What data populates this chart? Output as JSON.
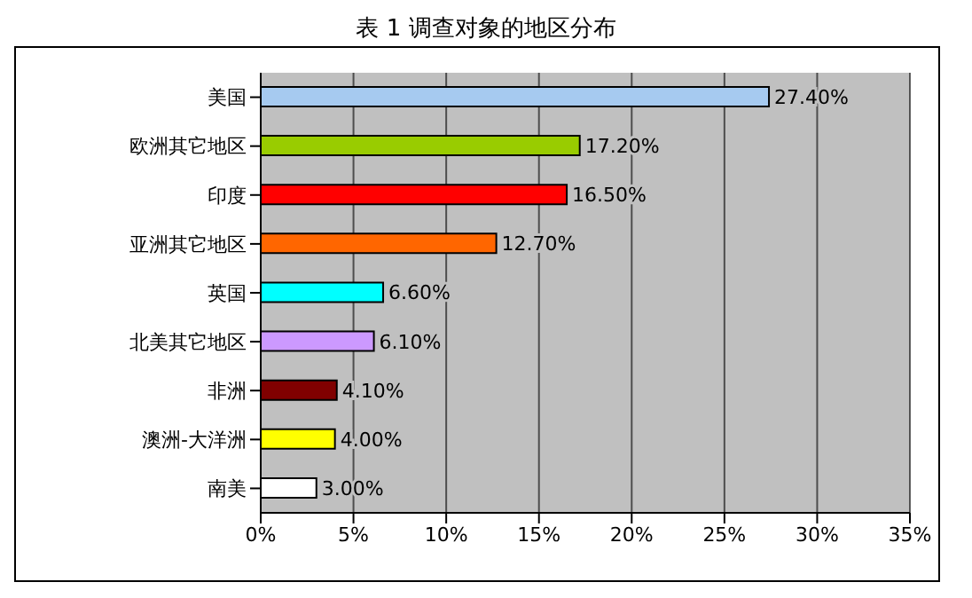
{
  "chart_data": {
    "type": "bar",
    "orientation": "horizontal",
    "title": "表 1 调查对象的地区分布",
    "categories": [
      "美国",
      "欧洲其它地区",
      "印度",
      "亚洲其它地区",
      "英国",
      "北美其它地区",
      "非洲",
      "澳洲-大洋洲",
      "南美"
    ],
    "values": [
      27.4,
      17.2,
      16.5,
      12.7,
      6.6,
      6.1,
      4.1,
      4.0,
      3.0
    ],
    "value_labels": [
      "27.40%",
      "17.20%",
      "16.50%",
      "12.70%",
      "6.60%",
      "6.10%",
      "4.10%",
      "4.00%",
      "3.00%"
    ],
    "colors": [
      "#a6caf0",
      "#99cc00",
      "#ff0000",
      "#ff6600",
      "#00ffff",
      "#cc99ff",
      "#800000",
      "#ffff00",
      "#ffffff"
    ],
    "xlim": [
      0,
      35
    ],
    "xticks": [
      {
        "value": 0,
        "label": "0%"
      },
      {
        "value": 5,
        "label": "5%"
      },
      {
        "value": 10,
        "label": "10%"
      },
      {
        "value": 15,
        "label": "15%"
      },
      {
        "value": 20,
        "label": "20%"
      },
      {
        "value": 25,
        "label": "25%"
      },
      {
        "value": 30,
        "label": "30%"
      },
      {
        "value": 35,
        "label": "35%"
      }
    ],
    "grid": "x",
    "legend": false
  }
}
